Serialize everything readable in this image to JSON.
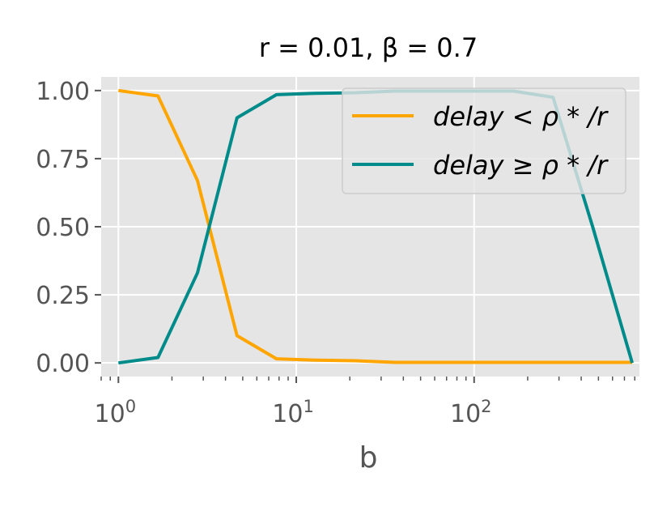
{
  "chart_data": {
    "type": "line",
    "title": "r = 0.01, β = 0.7",
    "xlabel": "b",
    "ylabel": "",
    "xscale": "log",
    "xlim": [
      0.8,
      850
    ],
    "ylim": [
      -0.05,
      1.05
    ],
    "grid": true,
    "x_ticks": [
      1,
      10,
      100
    ],
    "x_tick_labels": [
      {
        "base": "10",
        "exp": "0"
      },
      {
        "base": "10",
        "exp": "1"
      },
      {
        "base": "10",
        "exp": "2"
      }
    ],
    "y_ticks": [
      0.0,
      0.25,
      0.5,
      0.75,
      1.0
    ],
    "y_tick_labels": [
      "0.00",
      "0.25",
      "0.50",
      "0.75",
      "1.00"
    ],
    "legend_position": "upper right",
    "series": [
      {
        "name": "delay < ρ * /r",
        "color": "#FFA500",
        "x": [
          1,
          1.67,
          2.78,
          4.64,
          7.74,
          12.9,
          21.5,
          35.9,
          59.9,
          100,
          167,
          278,
          464,
          774
        ],
        "y": [
          1.0,
          0.98,
          0.67,
          0.1,
          0.015,
          0.01,
          0.008,
          0.002,
          0.002,
          0.002,
          0.002,
          0.002,
          0.002,
          0.002
        ]
      },
      {
        "name": "delay ≥ ρ * /r",
        "color": "#008B8B",
        "x": [
          1,
          1.67,
          2.78,
          4.64,
          7.74,
          12.9,
          21.5,
          35.9,
          59.9,
          100,
          167,
          278,
          464,
          774
        ],
        "y": [
          0.0,
          0.02,
          0.33,
          0.9,
          0.985,
          0.99,
          0.992,
          0.998,
          0.998,
          0.998,
          0.998,
          0.975,
          0.5,
          0.0
        ]
      }
    ]
  }
}
